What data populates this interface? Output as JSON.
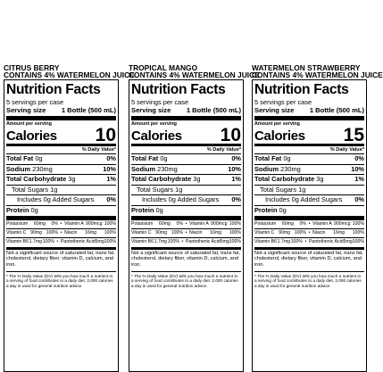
{
  "panels": [
    {
      "flavor_line1": "CITRUS BERRY",
      "flavor_line2": "CONTAINS 4% WATERMELON JUICE",
      "title": "Nutrition Facts",
      "servings": "5 servings per case",
      "serving_size_label": "Serving size",
      "serving_size_value": "1 Bottle (500 mL)",
      "amount_per_serving": "Amount per serving",
      "calories_label": "Calories",
      "calories_value": "10",
      "dv_header": "% Daily Value*",
      "total_fat_label": "Total Fat",
      "total_fat_amount": "0g",
      "total_fat_pct": "0%",
      "sodium_label": "Sodium",
      "sodium_amount": "230mg",
      "sodium_pct": "10%",
      "carb_label": "Total Carbohydrate",
      "carb_amount": "3g",
      "carb_pct": "1%",
      "sugars_label": "Total Sugars 1g",
      "added_sugars_label": "Includes 0g Added Sugars",
      "added_sugars_pct": "0%",
      "protein_label": "Protein",
      "protein_amount": "0g",
      "vitamins": [
        [
          "Potassium",
          "60mg",
          "0%",
          "Vitamin A",
          "900mcg",
          "100%"
        ],
        [
          "Vitamin C",
          "90mg",
          "100%",
          "Niacin",
          "16mg",
          "100%"
        ],
        [
          "Vitamin B6",
          "1.7mg",
          "100%",
          "Pantothenic Acid",
          "5mg",
          "100%"
        ]
      ],
      "note1": "Not a significant source of saturated fat, trans fat, cholesterol, dietary fiber, vitamin D, calcium, and iron.",
      "note2": "* The % Daily Value (DV) tells you how much a nutrient in a serving of food contributes to a daily diet. 2,000 calories a day is used for general nutrition advice."
    },
    {
      "flavor_line1": "TROPICAL MANGO",
      "flavor_line2": "CONTAINS 4% WATERMELON JUICE",
      "title": "Nutrition Facts",
      "servings": "5 servings per case",
      "serving_size_label": "Serving size",
      "serving_size_value": "1 Bottle (500 mL)",
      "amount_per_serving": "Amount per serving",
      "calories_label": "Calories",
      "calories_value": "10",
      "dv_header": "% Daily Value*",
      "total_fat_label": "Total Fat",
      "total_fat_amount": "0g",
      "total_fat_pct": "0%",
      "sodium_label": "Sodium",
      "sodium_amount": "230mg",
      "sodium_pct": "10%",
      "carb_label": "Total Carbohydrate",
      "carb_amount": "3g",
      "carb_pct": "1%",
      "sugars_label": "Total Sugars 1g",
      "added_sugars_label": "Includes 0g Added Sugars",
      "added_sugars_pct": "0%",
      "protein_label": "Protein",
      "protein_amount": "0g",
      "vitamins": [
        [
          "Potassium",
          "60mg",
          "0%",
          "Vitamin A",
          "900mcg",
          "100%"
        ],
        [
          "Vitamin C",
          "90mg",
          "100%",
          "Niacin",
          "16mg",
          "100%"
        ],
        [
          "Vitamin B6",
          "1.7mg",
          "100%",
          "Pantothenic Acid",
          "5mg",
          "100%"
        ]
      ],
      "note1": "Not a significant source of saturated fat, trans fat, cholesterol, dietary fiber, vitamin D, calcium, and iron.",
      "note2": "* The % Daily Value (DV) tells you how much a nutrient in a serving of food contributes to a daily diet. 2,000 calories a day is used for general nutrition advice."
    },
    {
      "flavor_line1": "WATERMELON STRAWBERRY",
      "flavor_line2": "CONTAINS 4% WATERMELON JUICE",
      "title": "Nutrition Facts",
      "servings": "5 servings per case",
      "serving_size_label": "Serving size",
      "serving_size_value": "1 Bottle (500 mL)",
      "amount_per_serving": "Amount per serving",
      "calories_label": "Calories",
      "calories_value": "15",
      "dv_header": "% Daily Value*",
      "total_fat_label": "Total Fat",
      "total_fat_amount": "0g",
      "total_fat_pct": "0%",
      "sodium_label": "Sodium",
      "sodium_amount": "230mg",
      "sodium_pct": "10%",
      "carb_label": "Total Carbohydrate",
      "carb_amount": "3g",
      "carb_pct": "1%",
      "sugars_label": "Total Sugars 1g",
      "added_sugars_label": "Includes 0g Added Sugars",
      "added_sugars_pct": "0%",
      "protein_label": "Protein",
      "protein_amount": "0g",
      "vitamins": [
        [
          "Potassium",
          "60mg",
          "0%",
          "Vitamin A",
          "900mcg",
          "100%"
        ],
        [
          "Vitamin C",
          "90mg",
          "100%",
          "Niacin",
          "16mg",
          "100%"
        ],
        [
          "Vitamin B6",
          "1.7mg",
          "100%",
          "Pantothenic Acid",
          "5mg",
          "100%"
        ]
      ],
      "note1": "Not a significant source of saturated fat, trans fat, cholesterol, dietary fiber, vitamin D, calcium, and iron.",
      "note2": "* The % Daily Value (DV) tells you how much a nutrient in a serving of food contributes to a daily diet. 2,000 calories a day is used for general nutrition advice."
    }
  ]
}
